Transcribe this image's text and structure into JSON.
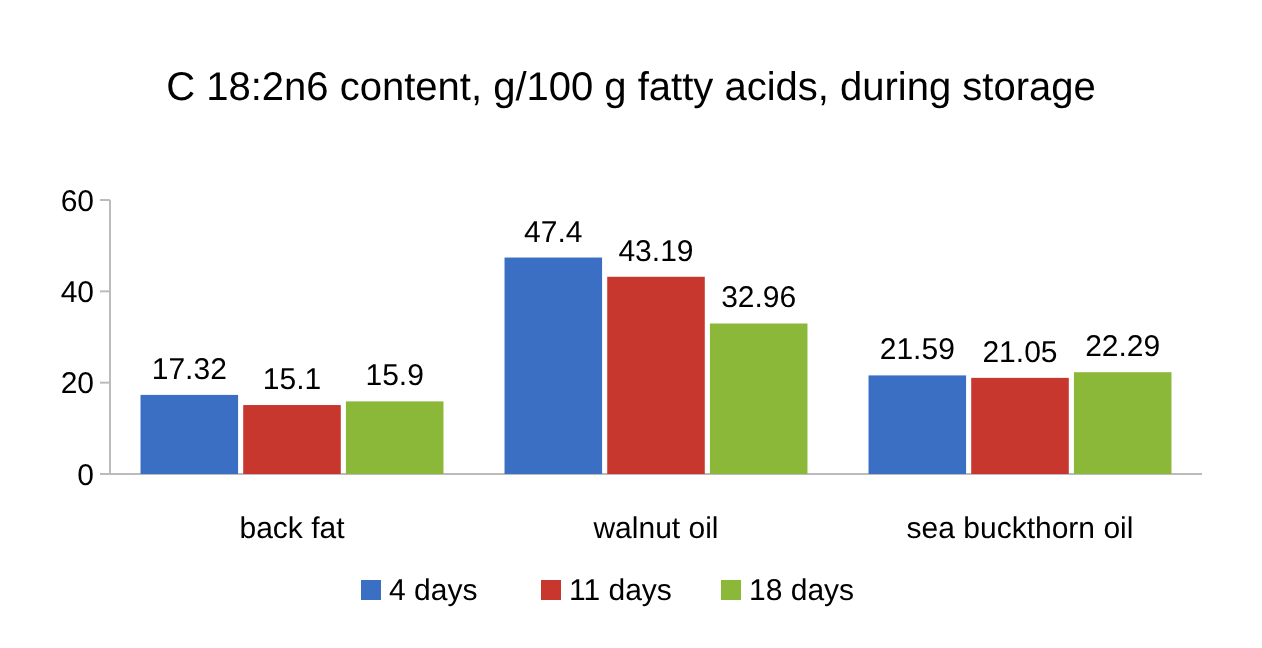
{
  "chart_data": {
    "type": "bar",
    "title": "C 18:2n6 content, g/100 g fatty acids, during storage",
    "categories": [
      "back fat",
      "walnut oil",
      "sea buckthorn oil"
    ],
    "series": [
      {
        "name": "4 days",
        "color": "#3a6fc4",
        "values": [
          17.32,
          47.4,
          21.59
        ]
      },
      {
        "name": "11 days",
        "color": "#c8372d",
        "values": [
          15.1,
          43.19,
          21.05
        ]
      },
      {
        "name": "18 days",
        "color": "#8cb83a",
        "values": [
          15.9,
          32.96,
          22.29
        ]
      }
    ],
    "ylim": [
      0,
      60
    ],
    "yticks": [
      0,
      20,
      40,
      60
    ],
    "data_labels": true,
    "legend": "bottom"
  }
}
